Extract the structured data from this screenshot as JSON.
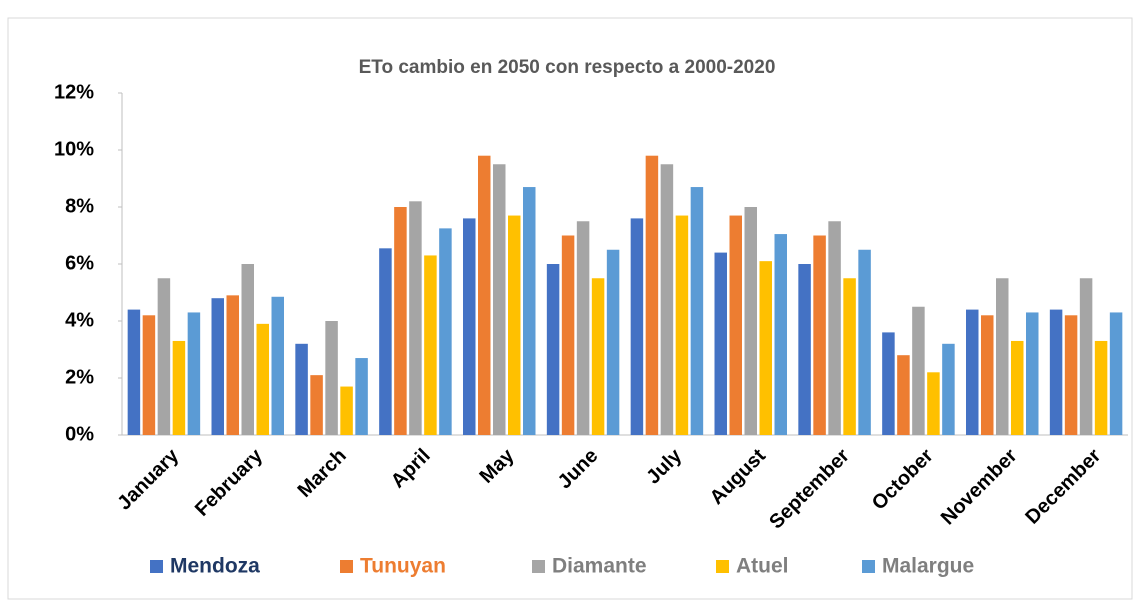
{
  "chart_data": {
    "type": "bar",
    "title": "ETo cambio en 2050 con respecto a 2000-2020",
    "categories": [
      "January",
      "February",
      "March",
      "April",
      "May",
      "June",
      "July",
      "August",
      "September",
      "October",
      "November",
      "December"
    ],
    "series": [
      {
        "name": "Mendoza",
        "color": "#4472c4",
        "label_color": "#1f3864",
        "values": [
          4.4,
          4.8,
          3.2,
          6.55,
          7.6,
          6.0,
          7.6,
          6.4,
          6.0,
          3.6,
          4.4,
          4.4
        ]
      },
      {
        "name": "Tunuyan",
        "color": "#ed7d31",
        "label_color": "#ed7d31",
        "values": [
          4.2,
          4.9,
          2.1,
          8.0,
          9.8,
          7.0,
          9.8,
          7.7,
          7.0,
          2.8,
          4.2,
          4.2
        ]
      },
      {
        "name": "Diamante",
        "color": "#a5a5a5",
        "label_color": "#7f7f7f",
        "values": [
          5.5,
          6.0,
          4.0,
          8.2,
          9.5,
          7.5,
          9.5,
          8.0,
          7.5,
          4.5,
          5.5,
          5.5
        ]
      },
      {
        "name": "Atuel",
        "color": "#ffc000",
        "label_color": "#7f7f7f",
        "values": [
          3.3,
          3.9,
          1.7,
          6.3,
          7.7,
          5.5,
          7.7,
          6.1,
          5.5,
          2.2,
          3.3,
          3.3
        ]
      },
      {
        "name": "Malargue",
        "color": "#5b9bd5",
        "label_color": "#7f7f7f",
        "values": [
          4.3,
          4.85,
          2.7,
          7.25,
          8.7,
          6.5,
          8.7,
          7.05,
          6.5,
          3.2,
          4.3,
          4.3
        ]
      }
    ],
    "ylim": [
      0,
      12
    ],
    "yticks": [
      {
        "value": 0,
        "label": "0%"
      },
      {
        "value": 2,
        "label": "2%"
      },
      {
        "value": 4,
        "label": "4%"
      },
      {
        "value": 6,
        "label": "6%"
      },
      {
        "value": 8,
        "label": "8%"
      },
      {
        "value": 10,
        "label": "10%"
      },
      {
        "value": 12,
        "label": "12%"
      }
    ],
    "grid": false,
    "legend": "bottom"
  }
}
